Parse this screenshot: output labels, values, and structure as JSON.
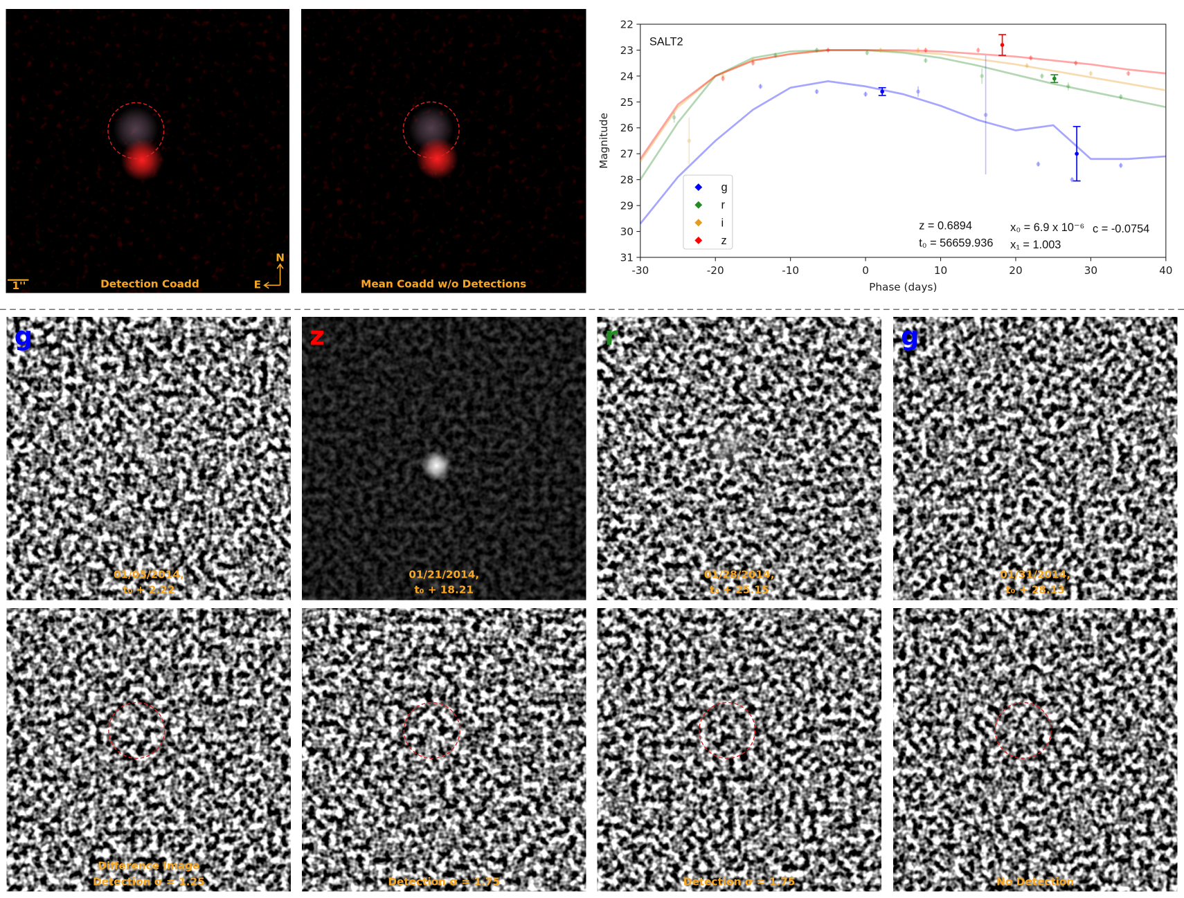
{
  "chart_data": {
    "type": "line",
    "title": "SALT2",
    "x_label": "Phase (days)",
    "y_label": "Magnitude",
    "xlim": [
      -30,
      40
    ],
    "xticks": [
      -30,
      -20,
      -10,
      0,
      10,
      20,
      30,
      40
    ],
    "ylim": [
      22,
      31
    ],
    "y_inverted": true,
    "yticks": [
      22,
      23,
      24,
      25,
      26,
      27,
      28,
      29,
      30,
      31
    ],
    "x": [
      -30,
      -25,
      -20,
      -15,
      -10,
      -5,
      0,
      5,
      10,
      15,
      20,
      25,
      30,
      35,
      40
    ],
    "series": [
      {
        "name": "g",
        "color": "#0000ff",
        "values": [
          29.7,
          27.9,
          26.5,
          25.3,
          24.45,
          24.2,
          24.4,
          24.7,
          25.15,
          25.7,
          26.1,
          25.9,
          27.2,
          27.2,
          27.1
        ]
      },
      {
        "name": "r",
        "color": "#228b22",
        "values": [
          28.0,
          25.8,
          24.0,
          23.3,
          23.05,
          23.0,
          23.0,
          23.1,
          23.3,
          23.6,
          23.95,
          24.3,
          24.6,
          24.9,
          25.2
        ]
      },
      {
        "name": "i",
        "color": "#e69b1e",
        "values": [
          27.3,
          25.2,
          24.0,
          23.4,
          23.15,
          23.0,
          23.0,
          23.05,
          23.15,
          23.35,
          23.55,
          23.8,
          24.05,
          24.3,
          24.55
        ]
      },
      {
        "name": "z",
        "color": "#ff0000",
        "values": [
          27.2,
          25.1,
          24.0,
          23.4,
          23.15,
          23.0,
          23.0,
          23.0,
          23.05,
          23.15,
          23.25,
          23.4,
          23.55,
          23.75,
          23.9
        ]
      }
    ],
    "points": [
      {
        "band": 0,
        "x": [
          -14,
          -6.5,
          0,
          7,
          16,
          23,
          27.5,
          34
        ],
        "values": [
          24.4,
          24.6,
          24.7,
          24.6,
          25.5,
          27.4,
          28.0,
          27.45
        ],
        "errors": [
          0.1,
          0.1,
          0.1,
          0.2,
          2.3,
          0.1,
          0.1,
          0.1
        ]
      },
      {
        "band": 1,
        "x": [
          -25.5,
          -12,
          -6.5,
          0.2,
          8,
          15.5,
          23.5,
          27,
          34
        ],
        "values": [
          25.6,
          23.2,
          23.0,
          23.1,
          23.4,
          24.0,
          24.0,
          24.4,
          24.8
        ],
        "errors": [
          0.2,
          0.1,
          0.1,
          0.1,
          0.1,
          0.3,
          0.1,
          0.15,
          0.1
        ]
      },
      {
        "band": 2,
        "x": [
          -23.5,
          -19,
          -15,
          2,
          7,
          21.5,
          30
        ],
        "values": [
          26.5,
          24.0,
          23.4,
          23.0,
          23.0,
          23.6,
          23.9
        ],
        "errors": [
          0.9,
          0.1,
          0.1,
          0.1,
          0.1,
          0.1,
          0.1
        ]
      },
      {
        "band": 3,
        "x": [
          -19,
          -15,
          -5,
          8,
          15,
          22,
          28,
          35
        ],
        "values": [
          24.1,
          23.5,
          23.0,
          23.0,
          23.0,
          23.3,
          23.5,
          23.9
        ],
        "errors": [
          0.1,
          0.1,
          0.1,
          0.1,
          0.1,
          0.1,
          0.1,
          0.1
        ]
      }
    ],
    "detections": [
      {
        "band": 0,
        "x": [
          2.22,
          28.13
        ],
        "values": [
          24.6,
          27.0
        ],
        "errors": [
          0.15,
          1.05
        ]
      },
      {
        "band": 1,
        "x": [
          25.15
        ],
        "values": [
          24.1
        ],
        "errors": [
          0.15
        ]
      },
      {
        "band": 3,
        "x": [
          18.21
        ],
        "values": [
          22.8
        ],
        "errors": [
          0.4
        ]
      }
    ],
    "legend": "lower left",
    "annotations": [
      "z = 0.6894",
      "t₀ = 56659.936",
      "x₀ = 6.9 x 10⁻⁶",
      "c = -0.0754",
      "x₁ = 1.003"
    ]
  },
  "figure": {
    "top_panels": [
      {
        "caption": "Detection Coadd",
        "scale": "1''",
        "north": "N",
        "east": "E"
      },
      {
        "caption": "Mean Coadd w/o Detections"
      }
    ],
    "epoch_panels": [
      {
        "band": "g",
        "color": "#0000ff",
        "date": "01/05/2014,",
        "phase": "t₀ + 2.22"
      },
      {
        "band": "z",
        "color": "#ff0000",
        "date": "01/21/2014,",
        "phase": "t₀ + 18.21"
      },
      {
        "band": "r",
        "color": "#228b22",
        "date": "01/28/2014,",
        "phase": "t₀ + 25.15"
      },
      {
        "band": "g",
        "color": "#0000ff",
        "date": "01/31/2014,",
        "phase": "t₀ + 28.13"
      }
    ],
    "difference_panels": [
      {
        "caption": [
          "Difference Image",
          "Detection σ = 1.25"
        ]
      },
      {
        "caption": [
          "Detection σ = 1.75"
        ]
      },
      {
        "caption": [
          "Detection σ = 1.75"
        ]
      },
      {
        "caption": [
          "No Detection"
        ]
      }
    ]
  }
}
